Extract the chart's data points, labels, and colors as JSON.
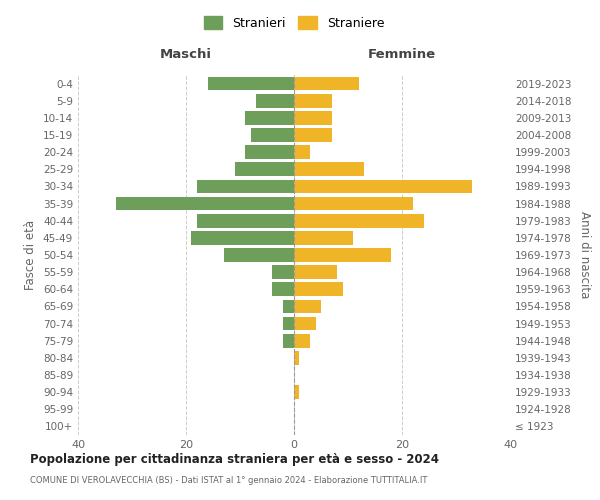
{
  "age_groups": [
    "100+",
    "95-99",
    "90-94",
    "85-89",
    "80-84",
    "75-79",
    "70-74",
    "65-69",
    "60-64",
    "55-59",
    "50-54",
    "45-49",
    "40-44",
    "35-39",
    "30-34",
    "25-29",
    "20-24",
    "15-19",
    "10-14",
    "5-9",
    "0-4"
  ],
  "birth_years": [
    "≤ 1923",
    "1924-1928",
    "1929-1933",
    "1934-1938",
    "1939-1943",
    "1944-1948",
    "1949-1953",
    "1954-1958",
    "1959-1963",
    "1964-1968",
    "1969-1973",
    "1974-1978",
    "1979-1983",
    "1984-1988",
    "1989-1993",
    "1994-1998",
    "1999-2003",
    "2004-2008",
    "2009-2013",
    "2014-2018",
    "2019-2023"
  ],
  "maschi": [
    0,
    0,
    0,
    0,
    0,
    2,
    2,
    2,
    4,
    4,
    13,
    19,
    18,
    33,
    18,
    11,
    9,
    8,
    9,
    7,
    16
  ],
  "femmine": [
    0,
    0,
    1,
    0,
    1,
    3,
    4,
    5,
    9,
    8,
    18,
    11,
    24,
    22,
    33,
    13,
    3,
    7,
    7,
    7,
    12
  ],
  "maschi_color": "#6d9e5a",
  "femmine_color": "#f0b429",
  "background_color": "#ffffff",
  "grid_color": "#cccccc",
  "title": "Popolazione per cittadinanza straniera per età e sesso - 2024",
  "subtitle": "COMUNE DI VEROLAVECCHIA (BS) - Dati ISTAT al 1° gennaio 2024 - Elaborazione TUTTITALIA.IT",
  "xlabel_left": "Maschi",
  "xlabel_right": "Femmine",
  "ylabel_left": "Fasce di età",
  "ylabel_right": "Anni di nascita",
  "legend_maschi": "Stranieri",
  "legend_femmine": "Straniere",
  "xlim": 40,
  "bar_height": 0.8
}
